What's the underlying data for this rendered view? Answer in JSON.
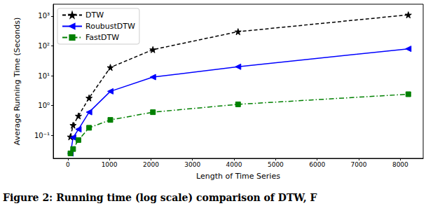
{
  "chart_data": {
    "type": "line",
    "caption": "Figure 2: Running time (log scale) comparison of DTW, F",
    "x_label": "Length of Time Series",
    "y_label": "Average Running Time (Seconds)",
    "x": [
      64,
      128,
      256,
      512,
      1024,
      2048,
      4096,
      8192
    ],
    "series": [
      {
        "name": "DTW",
        "color": "#000000",
        "marker": "star",
        "line_style": "dashed",
        "values": [
          0.09,
          0.22,
          0.45,
          1.8,
          19,
          75,
          300,
          1100
        ]
      },
      {
        "name": "RoubustDTW",
        "color": "#0000ff",
        "marker": "triangle_left",
        "line_style": "solid",
        "values": [
          0.025,
          0.085,
          0.16,
          0.6,
          3,
          9,
          20,
          80
        ]
      },
      {
        "name": "FastDTW",
        "color": "#008000",
        "marker": "square",
        "line_style": "dashdot",
        "values": [
          0.025,
          0.035,
          0.07,
          0.18,
          0.33,
          0.6,
          1.1,
          2.4
        ]
      }
    ],
    "xlim": [
      -350,
      8550
    ],
    "xticks": [
      0,
      1000,
      2000,
      3000,
      4000,
      5000,
      6000,
      7000,
      8000
    ],
    "ylim": [
      0.017,
      2500
    ],
    "yticks": [
      {
        "value": 0.1,
        "label": "10⁻¹"
      },
      {
        "value": 1,
        "label": "10⁰"
      },
      {
        "value": 10,
        "label": "10¹"
      },
      {
        "value": 100,
        "label": "10²"
      },
      {
        "value": 1000,
        "label": "10³"
      }
    ],
    "log": "y",
    "grid": false,
    "legend": "upper left"
  }
}
